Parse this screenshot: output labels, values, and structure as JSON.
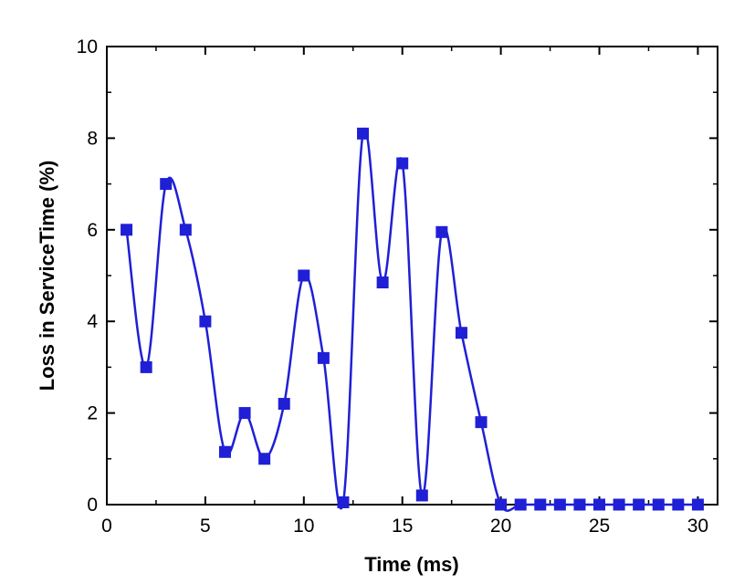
{
  "chart_data": {
    "type": "line",
    "xlabel": "Time (ms)",
    "ylabel": "Loss in ServiceTime (%)",
    "xlim": [
      0,
      31
    ],
    "ylim": [
      0,
      10
    ],
    "x_ticks": [
      0,
      5,
      10,
      15,
      20,
      25,
      30
    ],
    "x_tick_labels": [
      "0",
      "5",
      "10",
      "15",
      "20",
      "25",
      "30"
    ],
    "y_ticks": [
      0,
      2,
      4,
      6,
      8,
      10
    ],
    "y_tick_labels": [
      "0",
      "2",
      "4",
      "6",
      "8",
      "10"
    ],
    "grid": false,
    "series_color": "#1f1fd6",
    "marker": "square",
    "smooth": true,
    "series": [
      {
        "x": [
          1,
          2,
          3,
          4,
          5,
          6,
          7,
          8,
          9,
          10,
          11,
          12,
          13,
          14,
          15,
          16,
          17,
          18,
          19,
          20,
          21,
          22,
          23,
          24,
          25,
          26,
          27,
          28,
          29,
          30
        ],
        "values": [
          6.0,
          3.0,
          7.0,
          6.0,
          4.0,
          1.15,
          2.0,
          1.0,
          2.2,
          5.0,
          3.2,
          0.05,
          8.1,
          4.85,
          7.45,
          0.2,
          5.95,
          3.75,
          1.8,
          0,
          0,
          0,
          0,
          0,
          0,
          0,
          0,
          0,
          0,
          0
        ]
      }
    ]
  }
}
